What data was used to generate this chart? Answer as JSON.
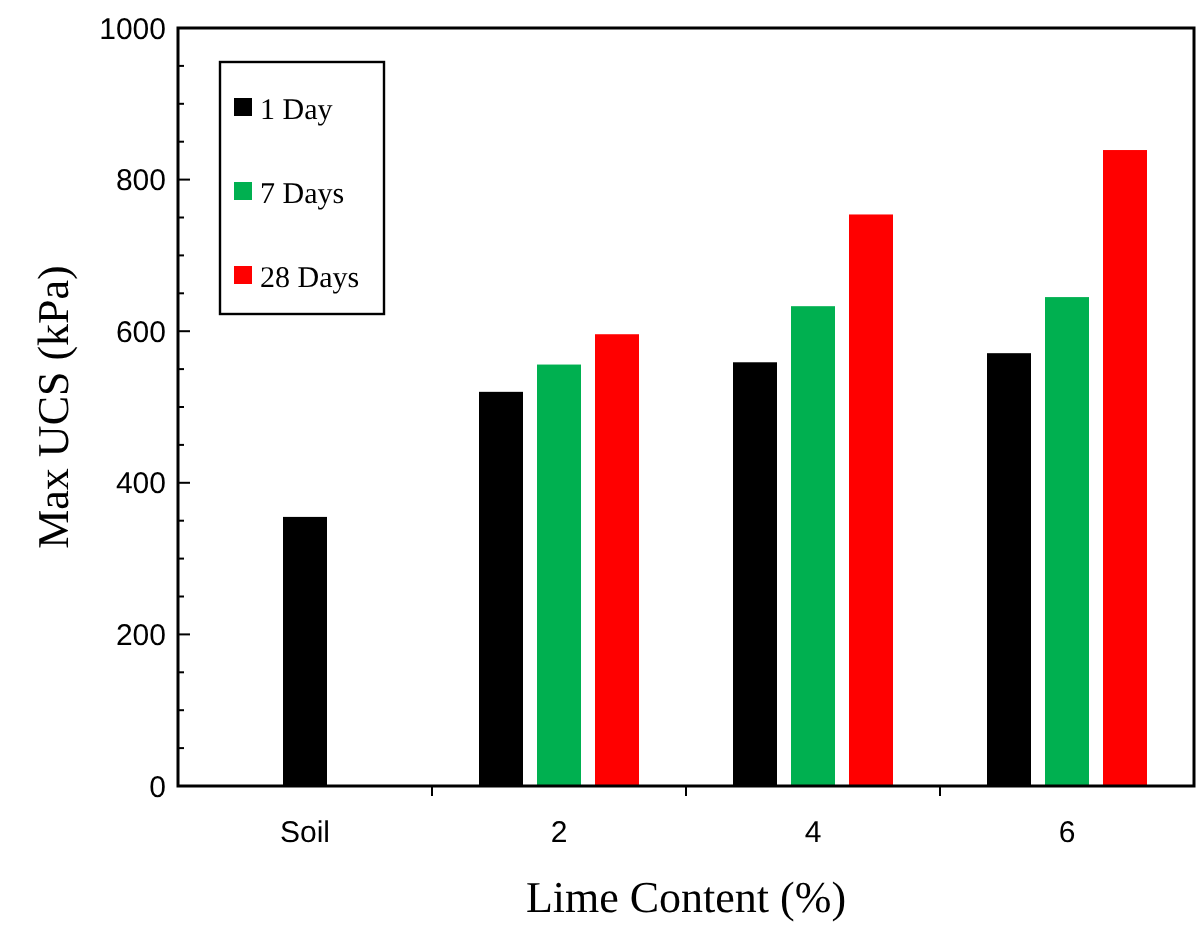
{
  "chart_data": {
    "type": "bar",
    "xlabel": "Lime Content (%)",
    "ylabel": "Max UCS (kPa)",
    "categories": [
      "Soil",
      "2",
      "4",
      "6"
    ],
    "series": [
      {
        "name": "1 Day",
        "color": "#000000",
        "values": [
          355,
          520,
          559,
          571
        ]
      },
      {
        "name": "7 Days",
        "color": "#00b050",
        "values": [
          null,
          556,
          633,
          645
        ]
      },
      {
        "name": "28 Days",
        "color": "#ff0000",
        "values": [
          null,
          596,
          754,
          839
        ]
      }
    ],
    "ylim": [
      0,
      1000
    ],
    "yticks": [
      0,
      {
        "value": 50,
        "label": null
      },
      {
        "value": 100,
        "label": null
      },
      {
        "value": 150,
        "label": null
      },
      200,
      {
        "value": 250,
        "label": null
      },
      {
        "value": 300,
        "label": null
      },
      {
        "value": 350,
        "label": null
      },
      400,
      {
        "value": 450,
        "label": null
      },
      {
        "value": 500,
        "label": null
      },
      {
        "value": 550,
        "label": null
      },
      600,
      {
        "value": 650,
        "label": null
      },
      {
        "value": 700,
        "label": null
      },
      {
        "value": 750,
        "label": null
      },
      800,
      {
        "value": 850,
        "label": null
      },
      {
        "value": 900,
        "label": null
      },
      {
        "value": 950,
        "label": null
      },
      1000
    ],
    "grid": false,
    "legend": "top left"
  }
}
